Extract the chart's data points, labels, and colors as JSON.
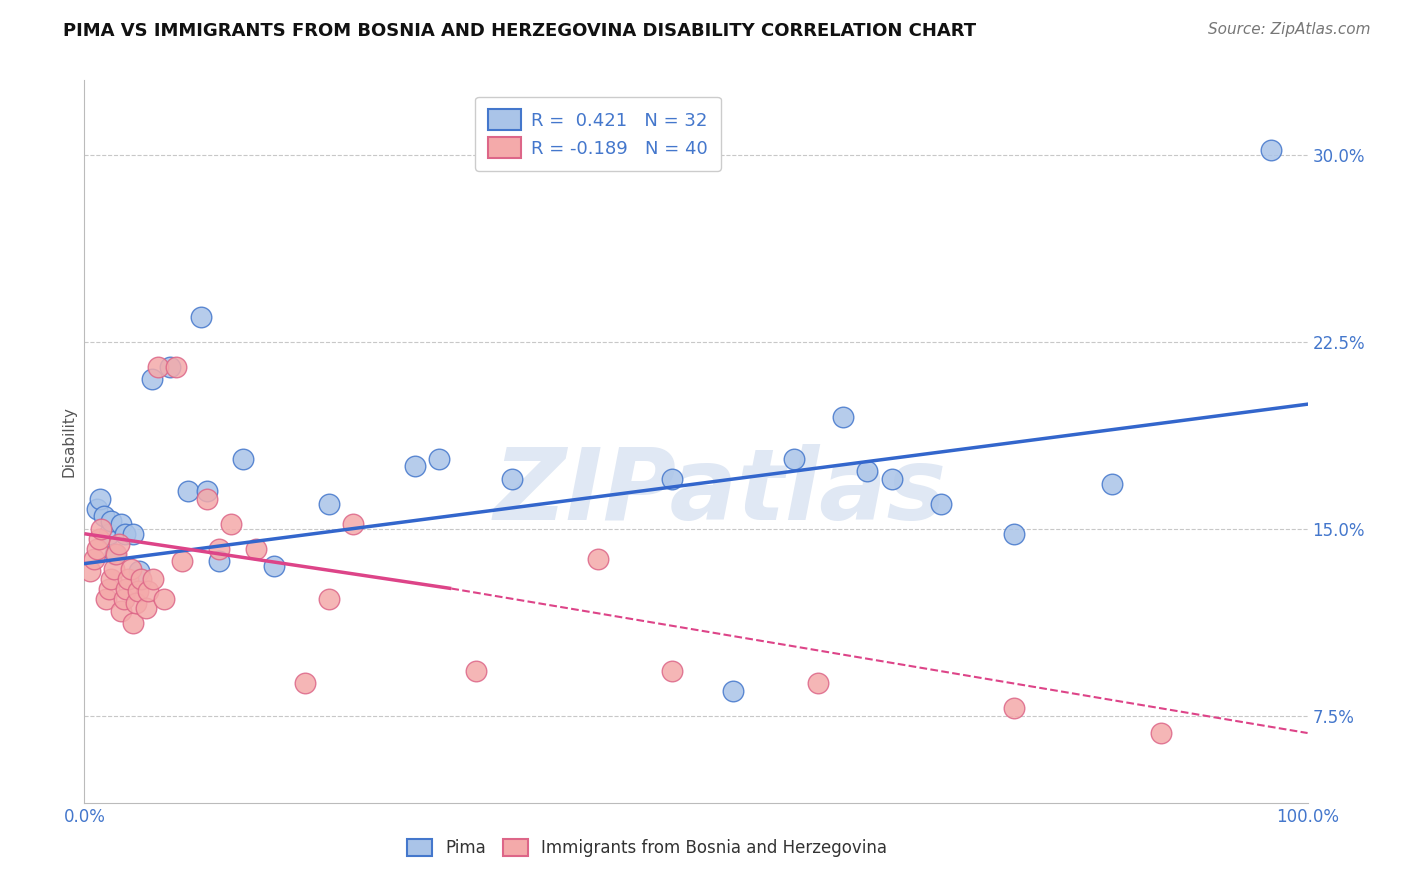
{
  "title": "PIMA VS IMMIGRANTS FROM BOSNIA AND HERZEGOVINA DISABILITY CORRELATION CHART",
  "source": "Source: ZipAtlas.com",
  "ylabel": "Disability",
  "xlim": [
    0.0,
    1.0
  ],
  "ylim": [
    0.04,
    0.33
  ],
  "yticks": [
    0.075,
    0.15,
    0.225,
    0.3
  ],
  "ytick_labels": [
    "7.5%",
    "15.0%",
    "22.5%",
    "30.0%"
  ],
  "xticks": [
    0.0,
    0.25,
    0.5,
    0.75,
    1.0
  ],
  "xtick_labels": [
    "0.0%",
    "",
    "",
    "",
    "100.0%"
  ],
  "grid_color": "#c8c8c8",
  "background_color": "#ffffff",
  "blue_fill": "#aac4e8",
  "blue_edge": "#4477cc",
  "pink_fill": "#f4aaaa",
  "pink_edge": "#dd6688",
  "blue_line_color": "#3366cc",
  "pink_line_color": "#dd4488",
  "legend_r_blue": "0.421",
  "legend_n_blue": "32",
  "legend_r_pink": "-0.189",
  "legend_n_pink": "40",
  "blue_x": [
    0.01,
    0.013,
    0.016,
    0.02,
    0.022,
    0.025,
    0.03,
    0.033,
    0.04,
    0.045,
    0.055,
    0.07,
    0.085,
    0.095,
    0.1,
    0.11,
    0.13,
    0.155,
    0.2,
    0.27,
    0.29,
    0.35,
    0.48,
    0.53,
    0.58,
    0.62,
    0.64,
    0.66,
    0.7,
    0.76,
    0.84,
    0.97
  ],
  "blue_y": [
    0.158,
    0.162,
    0.155,
    0.148,
    0.153,
    0.14,
    0.152,
    0.148,
    0.148,
    0.133,
    0.21,
    0.215,
    0.165,
    0.235,
    0.165,
    0.137,
    0.178,
    0.135,
    0.16,
    0.175,
    0.178,
    0.17,
    0.17,
    0.085,
    0.178,
    0.195,
    0.173,
    0.17,
    0.16,
    0.148,
    0.168,
    0.302
  ],
  "pink_x": [
    0.005,
    0.008,
    0.01,
    0.012,
    0.014,
    0.018,
    0.02,
    0.022,
    0.024,
    0.026,
    0.028,
    0.03,
    0.032,
    0.034,
    0.036,
    0.038,
    0.04,
    0.042,
    0.044,
    0.046,
    0.05,
    0.052,
    0.056,
    0.06,
    0.065,
    0.075,
    0.08,
    0.1,
    0.11,
    0.12,
    0.14,
    0.18,
    0.2,
    0.22,
    0.32,
    0.42,
    0.48,
    0.6,
    0.76,
    0.88
  ],
  "pink_y": [
    0.133,
    0.138,
    0.142,
    0.146,
    0.15,
    0.122,
    0.126,
    0.13,
    0.134,
    0.14,
    0.144,
    0.117,
    0.122,
    0.126,
    0.13,
    0.134,
    0.112,
    0.12,
    0.125,
    0.13,
    0.118,
    0.125,
    0.13,
    0.215,
    0.122,
    0.215,
    0.137,
    0.162,
    0.142,
    0.152,
    0.142,
    0.088,
    0.122,
    0.152,
    0.093,
    0.138,
    0.093,
    0.088,
    0.078,
    0.068
  ],
  "blue_trend": [
    0.0,
    1.0,
    0.136,
    0.2
  ],
  "pink_solid": [
    0.0,
    0.3,
    0.148,
    0.126
  ],
  "pink_dash": [
    0.3,
    1.0,
    0.126,
    0.068
  ],
  "watermark": "ZIPatlas",
  "watermark_color": "#e0e8f4",
  "title_fontsize": 13,
  "source_fontsize": 11,
  "axis_tick_fontsize": 12,
  "ylabel_fontsize": 11
}
